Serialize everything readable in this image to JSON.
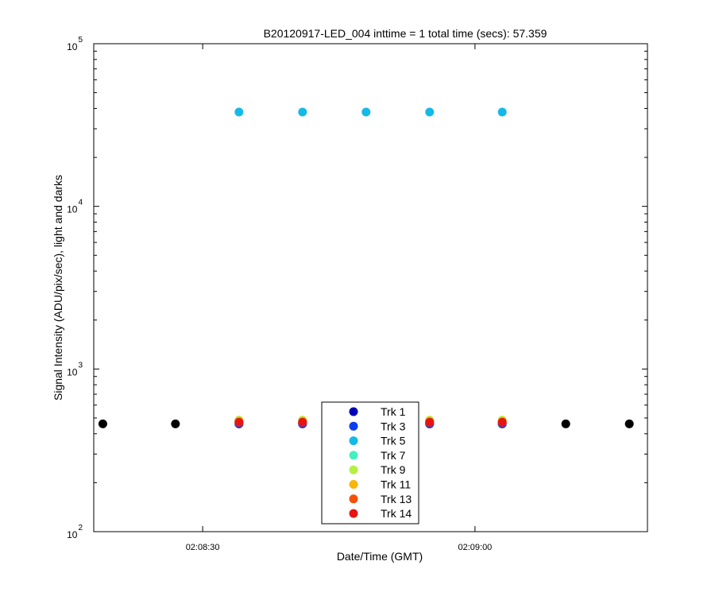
{
  "chart_data": {
    "type": "scatter",
    "title": "B20120917-LED_004 inttime = 1 total time (secs): 57.359",
    "xlabel": "Date/Time (GMT)",
    "ylabel": "Signal Intensity (ADU/pix/sec), light and darks",
    "x_range": [
      "02:08:18",
      "02:09:19"
    ],
    "ylim": [
      100,
      100000
    ],
    "y_scale": "log",
    "x_ticks": [
      {
        "time": "02:08:30",
        "label": "02:08:30"
      },
      {
        "time": "02:09:00",
        "label": "02:09:00"
      }
    ],
    "y_ticks": [
      {
        "value": 100,
        "base": "10",
        "exp": "2"
      },
      {
        "value": 1000,
        "base": "10",
        "exp": "3"
      },
      {
        "value": 10000,
        "base": "10",
        "exp": "4"
      },
      {
        "value": 100000,
        "base": "10",
        "exp": "5"
      }
    ],
    "grid": false,
    "legend_position": "bottom-center",
    "light_times": [
      "02:08:34",
      "02:08:41",
      "02:08:48",
      "02:08:55",
      "02:09:03"
    ],
    "dark_times": [
      "02:08:19",
      "02:08:27",
      "02:09:10",
      "02:09:17"
    ],
    "series": [
      {
        "name": "Trk 1",
        "color": "#0000bb",
        "light_values": [
          460,
          460,
          460,
          460,
          460
        ]
      },
      {
        "name": "Trk 3",
        "color": "#0d3cf0",
        "light_values": [
          460,
          460,
          460,
          460,
          460
        ]
      },
      {
        "name": "Trk 5",
        "color": "#14b9e8",
        "light_values": [
          38000,
          38000,
          38000,
          38000,
          38000
        ]
      },
      {
        "name": "Trk 7",
        "color": "#45f0c0",
        "light_values": [
          470,
          470,
          470,
          470,
          470
        ]
      },
      {
        "name": "Trk 9",
        "color": "#b6f045",
        "light_values": [
          485,
          485,
          485,
          485,
          485
        ]
      },
      {
        "name": "Trk 11",
        "color": "#fbb40a",
        "light_values": [
          478,
          478,
          478,
          478,
          478
        ]
      },
      {
        "name": "Trk 13",
        "color": "#f5500a",
        "light_values": [
          472,
          472,
          472,
          472,
          472
        ]
      },
      {
        "name": "Trk 14",
        "color": "#e81414",
        "light_values": [
          470,
          470,
          470,
          470,
          470
        ]
      }
    ],
    "darks": {
      "color": "#000000",
      "value": 460
    }
  }
}
